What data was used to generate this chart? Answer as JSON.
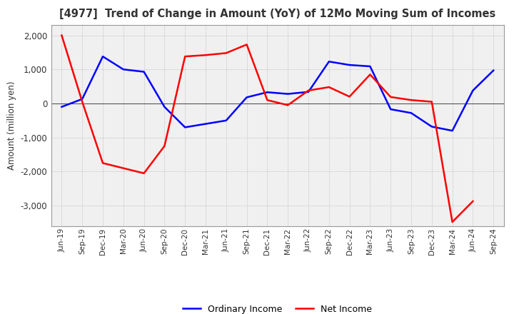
{
  "title": "[4977]  Trend of Change in Amount (YoY) of 12Mo Moving Sum of Incomes",
  "ylabel": "Amount (million yen)",
  "x_labels": [
    "Jun-19",
    "Sep-19",
    "Dec-19",
    "Mar-20",
    "Jun-20",
    "Sep-20",
    "Dec-20",
    "Mar-21",
    "Jun-21",
    "Sep-21",
    "Dec-21",
    "Mar-22",
    "Jun-22",
    "Sep-22",
    "Dec-22",
    "Mar-23",
    "Jun-23",
    "Sep-23",
    "Dec-23",
    "Mar-24",
    "Jun-24",
    "Sep-24"
  ],
  "ordinary_income": [
    -100,
    130,
    1380,
    1000,
    930,
    -100,
    -700,
    -600,
    -500,
    180,
    330,
    280,
    340,
    1230,
    1130,
    1090,
    -170,
    -280,
    -680,
    -800,
    380,
    970
  ],
  "net_income": [
    2000,
    50,
    -1750,
    -1900,
    -2050,
    -1250,
    1380,
    1420,
    1480,
    1730,
    100,
    -50,
    380,
    480,
    200,
    850,
    190,
    100,
    50,
    -3480,
    -2870,
    null
  ],
  "ordinary_color": "#0000ff",
  "net_color": "#ff0000",
  "ylim": [
    -3600,
    2300
  ],
  "yticks": [
    -3000,
    -2000,
    -1000,
    0,
    1000,
    2000
  ],
  "legend_ordinary": "Ordinary Income",
  "legend_net": "Net Income",
  "bg_color": "#ffffff",
  "plot_bg_color": "#f0f0f0",
  "grid_color": "#b0b0b0"
}
